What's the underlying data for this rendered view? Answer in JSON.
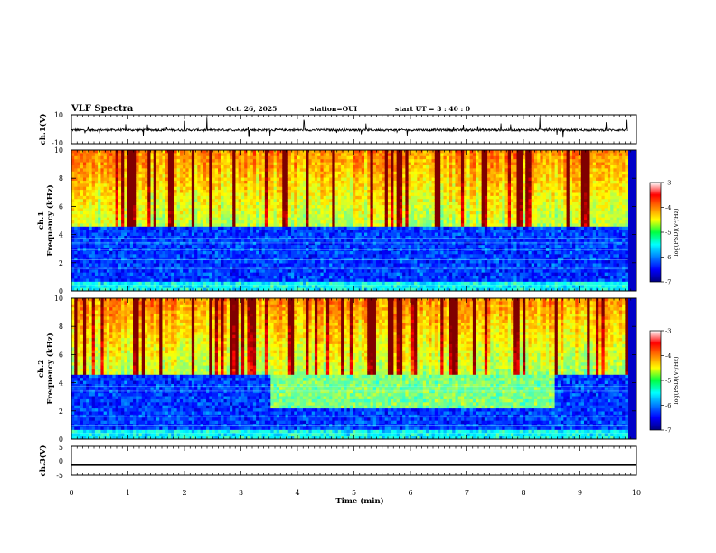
{
  "header": {
    "title": "VLF Spectra",
    "date": "Oct. 26, 2025",
    "station": "station=OUI",
    "start_ut": "start UT =  3 : 40 : 0"
  },
  "chart_data": [
    {
      "type": "line",
      "panel": "ch1-waveform",
      "ylabel": "ch.1(V)",
      "yticks": [
        "10",
        "-10"
      ],
      "ylim": [
        -10,
        10
      ],
      "xlim": [
        0,
        10
      ],
      "baseline": -0.5
    },
    {
      "type": "heatmap",
      "panel": "ch1-spectrogram",
      "ylabel": "ch.1\nFrequency (kHz)",
      "ylim": [
        0,
        10
      ],
      "yticks": [
        "0",
        "2",
        "4",
        "6",
        "8",
        "10"
      ],
      "xlim": [
        0,
        10
      ],
      "colorbar": {
        "label": "log(PSD)(V²/Hz)",
        "range": [
          -7,
          -3
        ],
        "ticks": [
          "-3",
          "-4",
          "-5",
          "-6",
          "-7"
        ]
      }
    },
    {
      "type": "heatmap",
      "panel": "ch2-spectrogram",
      "ylabel": "ch.2\nFrequency (kHz)",
      "ylim": [
        0,
        10
      ],
      "yticks": [
        "0",
        "2",
        "4",
        "6",
        "8",
        "10"
      ],
      "xlim": [
        0,
        10
      ],
      "enhanced_interval_min": [
        3.5,
        8.55
      ],
      "colorbar": {
        "label": "log(PSD)(V²/Hz)",
        "range": [
          -7,
          -3
        ],
        "ticks": [
          "-3",
          "-4",
          "-5",
          "-6",
          "-7"
        ]
      }
    },
    {
      "type": "line",
      "panel": "ch3-waveform",
      "ylabel": "ch.3(V)",
      "yticks": [
        "5",
        "0",
        "-5"
      ],
      "ylim": [
        -5,
        5
      ],
      "xlim": [
        0,
        10
      ],
      "baseline": -1.5
    }
  ],
  "xaxis": {
    "label": "Time (min)",
    "ticks": [
      "0",
      "1",
      "2",
      "3",
      "4",
      "5",
      "6",
      "7",
      "8",
      "9",
      "10"
    ]
  }
}
